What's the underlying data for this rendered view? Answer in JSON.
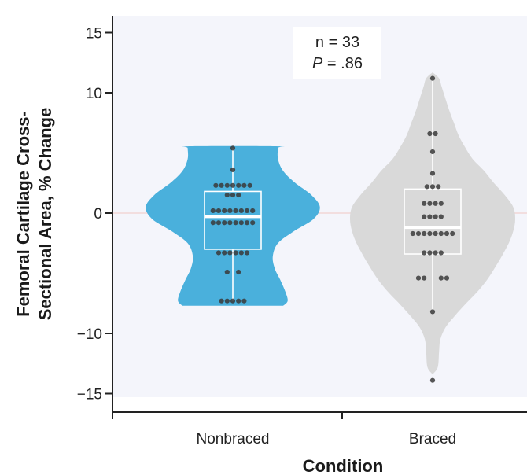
{
  "chart_data": {
    "type": "violin",
    "ylabel_line1": "Femoral Cartilage Cross-",
    "ylabel_line2": "Sectional Area, % Change",
    "xlabel": "Condition",
    "ylim": [
      -15,
      15
    ],
    "yticks": [
      15,
      10,
      0,
      -10,
      -15
    ],
    "ytick_labels": [
      "15",
      "10",
      "0",
      "−10",
      "−15"
    ],
    "annotation": {
      "n_text": "n = 33",
      "p_italic": "P",
      "p_rest": " = .86"
    },
    "colors": {
      "panel": "#f4f5fb",
      "nonbraced": "#4ab0dc",
      "braced": "#d9d9d9",
      "dot": "#3a3a3a",
      "box": "#ffffff",
      "zero_line": "#f2d6d6"
    },
    "groups": [
      {
        "name": "Nonbraced",
        "color": "#4ab0dc",
        "box": {
          "q1": -3,
          "median": -0.3,
          "q3": 1.8,
          "whisker_low": -7.3,
          "whisker_high": 5.4
        },
        "violin_profile": [
          [
            -7.7,
            0.78
          ],
          [
            -7.3,
            0.85
          ],
          [
            -6.6,
            0.82
          ],
          [
            -5.6,
            0.74
          ],
          [
            -4.6,
            0.65
          ],
          [
            -3.6,
            0.62
          ],
          [
            -2.5,
            0.7
          ],
          [
            -1.5,
            0.95
          ],
          [
            -0.5,
            1.25
          ],
          [
            0.5,
            1.35
          ],
          [
            1.5,
            1.22
          ],
          [
            2.5,
            0.97
          ],
          [
            3.5,
            0.78
          ],
          [
            4.5,
            0.7
          ],
          [
            5.4,
            0.7
          ],
          [
            5.55,
            0.7
          ]
        ],
        "points": [
          [
            5.4,
            [
              0
            ]
          ],
          [
            3.6,
            [
              0
            ]
          ],
          [
            2.3,
            [
              -3,
              -2,
              -1,
              0,
              1,
              2,
              3
            ]
          ],
          [
            1.5,
            [
              -1,
              0,
              1
            ]
          ],
          [
            0.2,
            [
              -3.5,
              -2.5,
              -1.5,
              -0.5,
              0.5,
              1.5,
              2.5,
              3.5
            ]
          ],
          [
            -0.8,
            [
              -3.5,
              -2.5,
              -1.5,
              -0.5,
              0.5,
              1.5,
              2.5,
              3.5
            ]
          ],
          [
            -3.3,
            [
              -2.5,
              -1.5,
              -0.5,
              0.5,
              1.5,
              2.5
            ]
          ],
          [
            -4.9,
            [
              -1,
              1
            ]
          ],
          [
            -7.3,
            [
              -2,
              -1,
              0,
              1,
              2
            ]
          ]
        ]
      },
      {
        "name": "Braced",
        "color": "#d9d9d9",
        "box": {
          "q1": -3.4,
          "median": -1.2,
          "q3": 2,
          "whisker_low": -8.2,
          "whisker_high": 11.2
        },
        "violin_profile": [
          [
            -13.4,
            0.0
          ],
          [
            -12.8,
            0.08
          ],
          [
            -11.5,
            0.1
          ],
          [
            -10.5,
            0.12
          ],
          [
            -9.5,
            0.2
          ],
          [
            -8.5,
            0.35
          ],
          [
            -7.5,
            0.52
          ],
          [
            -6.5,
            0.7
          ],
          [
            -5.5,
            0.85
          ],
          [
            -4.5,
            0.97
          ],
          [
            -3.5,
            1.08
          ],
          [
            -2.5,
            1.18
          ],
          [
            -1.5,
            1.25
          ],
          [
            -0.5,
            1.28
          ],
          [
            0.5,
            1.25
          ],
          [
            1.5,
            1.12
          ],
          [
            2.5,
            0.95
          ],
          [
            3.5,
            0.8
          ],
          [
            4.5,
            0.62
          ],
          [
            5.5,
            0.5
          ],
          [
            6.5,
            0.4
          ],
          [
            7.5,
            0.33
          ],
          [
            8.5,
            0.26
          ],
          [
            9.5,
            0.2
          ],
          [
            10.5,
            0.14
          ],
          [
            11.2,
            0.1
          ],
          [
            11.7,
            0.0
          ]
        ],
        "points": [
          [
            11.2,
            [
              0
            ]
          ],
          [
            6.6,
            [
              -0.5,
              0.5
            ]
          ],
          [
            5.1,
            [
              0
            ]
          ],
          [
            3.3,
            [
              0
            ]
          ],
          [
            2.2,
            [
              -1,
              0,
              1
            ]
          ],
          [
            0.8,
            [
              -1.5,
              -0.5,
              0.5,
              1.5
            ]
          ],
          [
            -0.3,
            [
              -1.5,
              -0.5,
              0.5,
              1.5
            ]
          ],
          [
            -1.7,
            [
              -3.5,
              -2.5,
              -1.5,
              -0.5,
              0.5,
              1.5,
              2.5,
              3.5
            ]
          ],
          [
            -3.3,
            [
              -1.5,
              -0.5,
              0.5,
              1.5
            ]
          ],
          [
            -5.4,
            [
              -2.5,
              -1.5,
              1.5,
              2.5
            ]
          ],
          [
            -8.2,
            [
              0
            ]
          ],
          [
            -13.9,
            [
              0
            ]
          ]
        ]
      }
    ]
  }
}
